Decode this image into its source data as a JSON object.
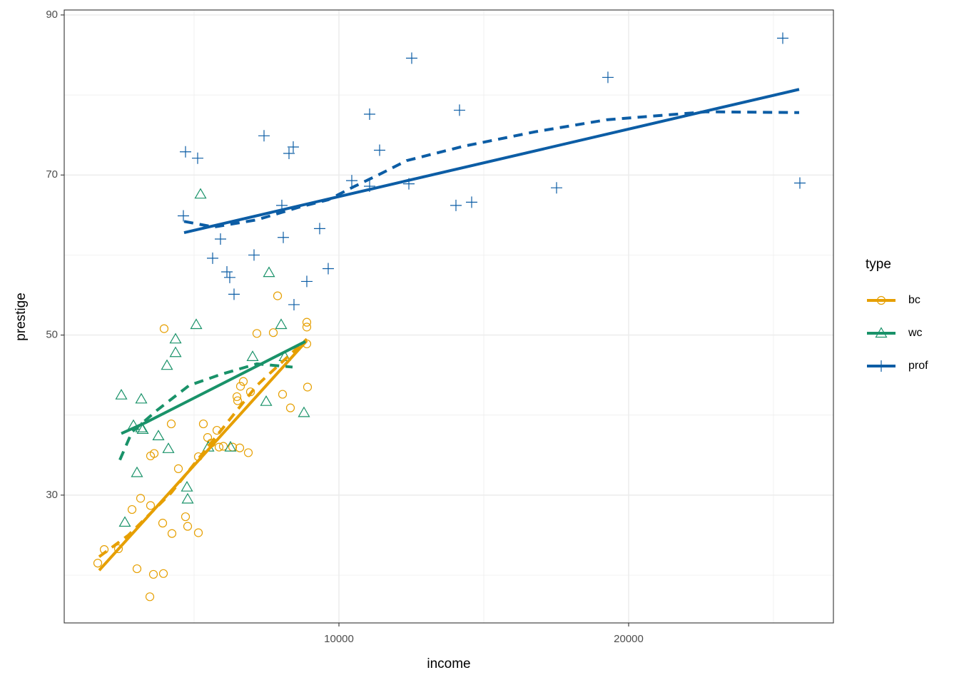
{
  "chart_data": {
    "type": "scatter",
    "x_label": "income",
    "y_label": "prestige",
    "legend_title": "type",
    "legend": "right",
    "grid": true,
    "xlim": [
      517,
      27069
    ],
    "ylim": [
      14.03,
      90.62
    ],
    "xticks": [
      10000,
      20000
    ],
    "yticks": [
      30,
      50,
      70,
      90
    ],
    "xminor": [
      5000,
      15000,
      25000
    ],
    "yminor": [
      20,
      40,
      60,
      80
    ],
    "series": [
      {
        "name": "bc",
        "color": "#e69f00",
        "shape": "circle",
        "x": [
          1675,
          1897,
          2389,
          2857,
          3029,
          3153,
          3497,
          3497,
          3621,
          3596,
          3473,
          3941,
          3916,
          3965,
          4212,
          4236,
          4458,
          4704,
          4778,
          5148,
          5148,
          5320,
          5468,
          5591,
          5788,
          5862,
          6010,
          6330,
          6478,
          6502,
          6576,
          6601,
          6699,
          6872,
          6946,
          7167,
          7734,
          7882,
          8054,
          8325,
          8891,
          8891,
          8891,
          8916
        ],
        "y": [
          21.5,
          23.2,
          23.3,
          28.2,
          20.8,
          29.6,
          28.7,
          34.9,
          35.2,
          20.1,
          17.3,
          20.2,
          26.5,
          50.8,
          38.9,
          25.2,
          33.3,
          27.3,
          26.1,
          25.3,
          34.8,
          38.9,
          37.2,
          36.5,
          38.1,
          36.0,
          36.1,
          36.0,
          42.3,
          41.8,
          35.9,
          43.6,
          44.2,
          35.3,
          42.9,
          50.2,
          50.3,
          54.9,
          42.6,
          40.9,
          51.6,
          51.0,
          48.9,
          43.5
        ],
        "fit": {
          "x": [
            1724,
            8891
          ],
          "y": [
            20.6,
            49.3
          ]
        },
        "smooth": {
          "x": [
            1724,
            2734,
            4212,
            5690,
            7167,
            8891
          ],
          "y": [
            22.3,
            25.0,
            30.3,
            37.0,
            43.7,
            49.5
          ]
        }
      },
      {
        "name": "wc",
        "color": "#199269",
        "shape": "triangle",
        "x": [
          2488,
          2611,
          2906,
          3029,
          3177,
          3177,
          3227,
          3768,
          4064,
          4113,
          4360,
          4360,
          4754,
          4778,
          5074,
          5222,
          5492,
          6256,
          7020,
          7488,
          7586,
          8005,
          8128,
          8793
        ],
        "y": [
          42.5,
          26.6,
          38.7,
          32.8,
          42.0,
          38.4,
          38.2,
          37.4,
          46.2,
          35.8,
          49.5,
          47.8,
          31.0,
          29.5,
          51.3,
          67.6,
          36.0,
          36.0,
          47.3,
          41.7,
          57.8,
          51.3,
          47.3,
          40.3
        ],
        "fit": {
          "x": [
            2488,
            3350,
            8842
          ],
          "y": [
            37.7,
            39.1,
            49.2
          ]
        },
        "smooth": {
          "x": [
            2438,
            2857,
            3719,
            4827,
            5936,
            7167,
            8399
          ],
          "y": [
            34.4,
            37.9,
            40.6,
            43.7,
            45.1,
            46.4,
            46.0
          ]
        }
      },
      {
        "name": "prof",
        "color": "#0c5da5",
        "shape": "plus",
        "x": [
          4630,
          4704,
          5123,
          5911,
          5640,
          6133,
          6231,
          6379,
          7069,
          7414,
          8079,
          8029,
          8276,
          8423,
          8448,
          8891,
          9335,
          9630,
          10443,
          11059,
          11059,
          11404,
          12414,
          12512,
          14039,
          14162,
          14581,
          17512,
          19285,
          25320,
          25911
        ],
        "y": [
          64.9,
          72.9,
          72.1,
          62.0,
          59.6,
          57.9,
          57.2,
          55.1,
          60.0,
          74.9,
          62.2,
          66.2,
          72.7,
          73.5,
          53.8,
          56.7,
          63.3,
          58.3,
          69.3,
          77.6,
          68.6,
          73.1,
          68.9,
          84.6,
          66.2,
          78.1,
          66.6,
          68.4,
          82.2,
          87.1,
          69.0
        ],
        "fit": {
          "x": [
            4655,
            25886
          ],
          "y": [
            62.8,
            80.7
          ]
        },
        "smooth": {
          "x": [
            4655,
            5690,
            7167,
            8645,
            9630,
            10492,
            11354,
            12340,
            14310,
            16773,
            19236,
            22684,
            25886
          ],
          "y": [
            64.2,
            63.5,
            64.4,
            66.0,
            66.9,
            68.5,
            70.0,
            71.8,
            73.6,
            75.4,
            76.9,
            77.9,
            77.8
          ]
        }
      }
    ]
  }
}
